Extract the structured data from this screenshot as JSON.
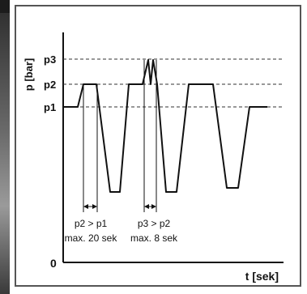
{
  "diagram": {
    "y_axis_label": "p [bar]",
    "x_axis_label": "t [sek]",
    "origin_label": "0",
    "levels": [
      {
        "label": "p3"
      },
      {
        "label": "p2"
      },
      {
        "label": "p1"
      }
    ],
    "annotations": [
      {
        "line1": "p2 > p1",
        "line2": "max. 20 sek"
      },
      {
        "line1": "p3 > p2",
        "line2": "max. 8 sek"
      }
    ]
  },
  "colors": {
    "line": "#111111",
    "frame": "#555555",
    "dash": "#333333"
  }
}
